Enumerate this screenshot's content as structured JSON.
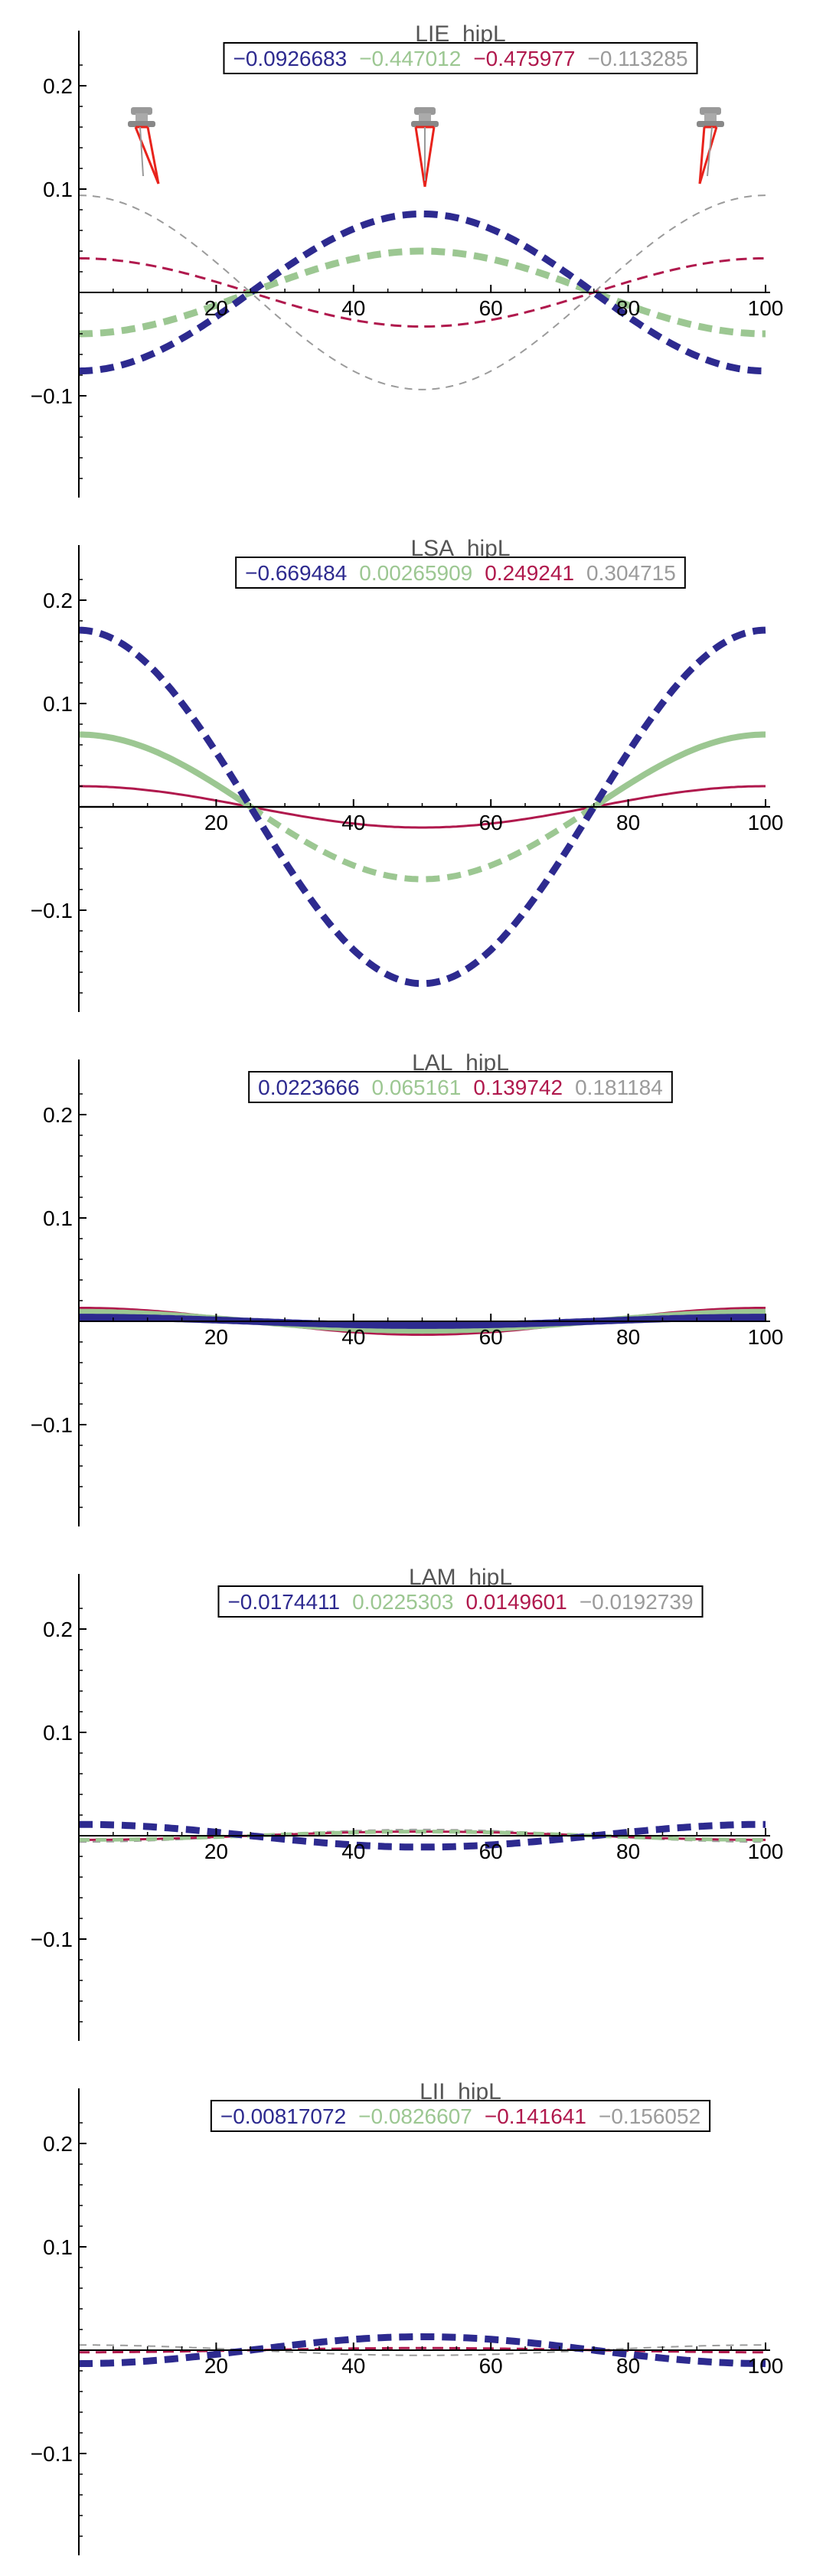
{
  "colors": {
    "s1": "#2d2a8f",
    "s2": "#9cc792",
    "s3": "#b0194d",
    "s4": "#9b9b9b"
  },
  "chart_data": [
    {
      "type": "line",
      "title": "LIE_hipL",
      "legend": [
        "−0.0926683",
        "−0.447012",
        "−0.475977",
        "−0.113285"
      ],
      "xticks": [
        "20",
        "40",
        "60",
        "80",
        "100"
      ],
      "yticks": [
        "0.2",
        "0.1",
        "−0.1"
      ],
      "xlim": [
        0,
        100
      ],
      "ylim": [
        -0.2,
        0.2
      ],
      "grid": false,
      "legend_position": "top-center",
      "icons": [
        "robot-leg-icon",
        "robot-leg-icon",
        "robot-leg-icon"
      ],
      "series": [
        {
          "amp": -0.076,
          "dash": true,
          "width": 9
        },
        {
          "amp": -0.04,
          "dash": true,
          "width": 9
        },
        {
          "amp": 0.033,
          "dash": true,
          "width": 3
        },
        {
          "amp": 0.094,
          "dash": true,
          "width": 2
        }
      ]
    },
    {
      "type": "line",
      "title": "LSA_hipL",
      "legend": [
        "−0.669484",
        "0.00265909",
        "0.249241",
        "0.304715"
      ],
      "xticks": [
        "20",
        "40",
        "60",
        "80",
        "100"
      ],
      "yticks": [
        "0.2",
        "0.1",
        "−0.1"
      ],
      "xlim": [
        0,
        100
      ],
      "ylim": [
        -0.2,
        0.2
      ],
      "grid": false,
      "legend_position": "top-center",
      "series": [
        {
          "amp": 0.171,
          "dash": true,
          "width": 9
        },
        {
          "amp": 0.07,
          "dash": "half",
          "width": 8
        },
        {
          "amp": 0.02,
          "dash": false,
          "width": 3
        },
        {
          "amp": 0.0,
          "dash": false,
          "width": 3
        }
      ]
    },
    {
      "type": "line",
      "title": "LAL_hipL",
      "legend": [
        "0.0223666",
        "0.065161",
        "0.139742",
        "0.181184"
      ],
      "xticks": [
        "20",
        "40",
        "60",
        "80",
        "100"
      ],
      "yticks": [
        "0.2",
        "0.1",
        "−0.1"
      ],
      "xlim": [
        0,
        100
      ],
      "ylim": [
        -0.2,
        0.2
      ],
      "grid": false,
      "legend_position": "top-center",
      "series": [
        {
          "amp": 0.004,
          "dash": false,
          "width": 9
        },
        {
          "amp": 0.009,
          "dash": false,
          "width": 8
        },
        {
          "amp": 0.013,
          "dash": false,
          "width": 3
        },
        {
          "amp": 0.006,
          "dash": false,
          "width": 3
        }
      ]
    },
    {
      "type": "line",
      "title": "LAM_hipL",
      "legend": [
        "−0.0174411",
        "0.0225303",
        "0.0149601",
        "−0.0192739"
      ],
      "xticks": [
        "20",
        "40",
        "60",
        "80",
        "100"
      ],
      "yticks": [
        "0.2",
        "0.1",
        "−0.1"
      ],
      "xlim": [
        0,
        100
      ],
      "ylim": [
        -0.2,
        0.2
      ],
      "grid": false,
      "legend_position": "top-center",
      "series": [
        {
          "amp": 0.011,
          "dash": true,
          "width": 9
        },
        {
          "amp": -0.004,
          "dash": true,
          "width": 5
        },
        {
          "amp": -0.004,
          "dash": false,
          "width": 3
        },
        {
          "amp": -0.006,
          "dash": true,
          "width": 2
        }
      ]
    },
    {
      "type": "line",
      "title": "LII_hipL",
      "legend": [
        "−0.00817072",
        "−0.0826607",
        "−0.141641",
        "−0.156052"
      ],
      "xticks": [
        "20",
        "40",
        "60",
        "80",
        "100"
      ],
      "yticks": [
        "0.2",
        "0.1",
        "−0.1"
      ],
      "xlim": [
        0,
        100
      ],
      "ylim": [
        -0.2,
        0.2
      ],
      "grid": false,
      "legend_position": "top-center",
      "series": [
        {
          "amp": -0.013,
          "dash": true,
          "width": 9
        },
        {
          "amp": -0.012,
          "dash": true,
          "width": 6
        },
        {
          "amp": -0.002,
          "dash": true,
          "width": 3
        },
        {
          "amp": 0.005,
          "dash": true,
          "width": 2
        }
      ]
    }
  ]
}
